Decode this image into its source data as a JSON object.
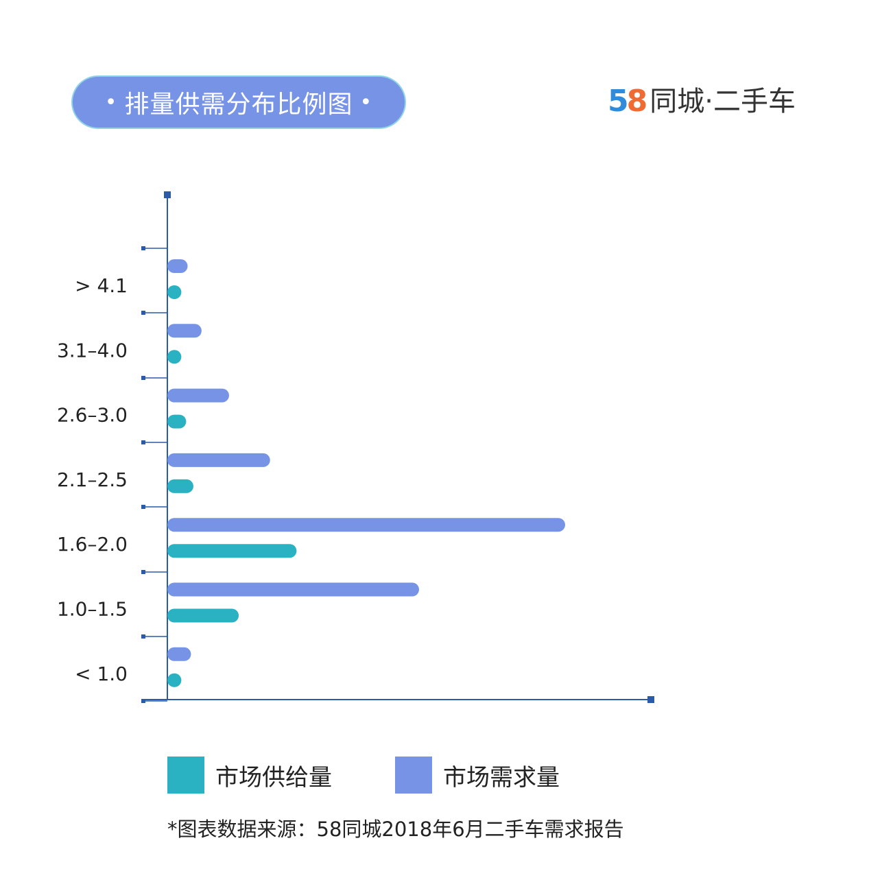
{
  "header": {
    "title": "排量供需分布比例图",
    "title_bullet": "•",
    "logo_digit_5": "5",
    "logo_digit_8": "8",
    "logo_text": "同城·二手车"
  },
  "chart_data": {
    "type": "bar",
    "orientation": "horizontal",
    "categories": [
      "> 4.1",
      "3.1–4.0",
      "2.6–3.0",
      "2.1–2.5",
      "1.6–2.0",
      "1.0–1.5",
      "< 1.0"
    ],
    "series": [
      {
        "name": "市场需求量",
        "color": "#7693e6",
        "values": [
          4.2,
          7.1,
          12.8,
          21.3,
          82.5,
          52.2,
          4.9
        ]
      },
      {
        "name": "市场供给量",
        "color": "#2bb2c2",
        "values": [
          2.9,
          2.9,
          3.9,
          5.4,
          26.8,
          14.8,
          2.9
        ]
      }
    ],
    "xlim": [
      0,
      100
    ],
    "grid": false,
    "legend_position": "bottom"
  },
  "legend": {
    "supply_label": "市场供给量",
    "demand_label": "市场需求量",
    "supply_color": "#2bb2c2",
    "demand_color": "#7693e6"
  },
  "footer": {
    "source": "*图表数据来源：58同城2018年6月二手车需求报告"
  }
}
